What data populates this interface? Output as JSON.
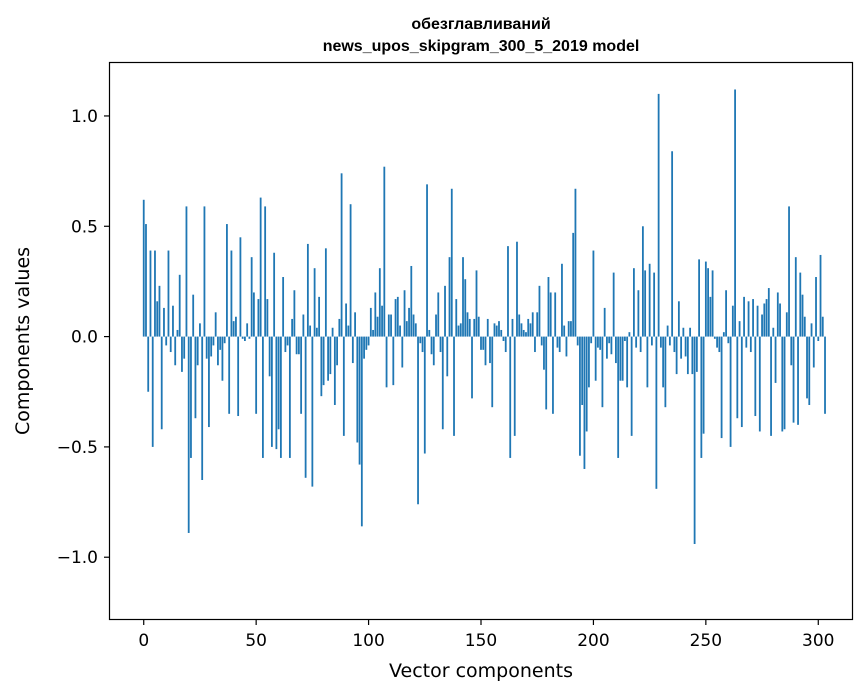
{
  "chart_data": {
    "type": "bar",
    "title": "обезглавливаний",
    "subtitle": "news_upos_skipgram_300_5_2019 model",
    "xlabel": "Vector components",
    "ylabel": "Components values",
    "xlim": [
      -15,
      315
    ],
    "ylim": [
      -1.28,
      1.24
    ],
    "xticks": [
      0,
      50,
      100,
      150,
      200,
      250,
      300
    ],
    "yticks": [
      -1.0,
      -0.5,
      0.0,
      0.5,
      1.0
    ],
    "ytick_labels": [
      "−1.0",
      "−0.5",
      "0.0",
      "0.5",
      "1.0"
    ],
    "bar_color": "#1f77b4",
    "grid": false,
    "values": [
      0.62,
      0.51,
      -0.25,
      0.39,
      -0.5,
      0.39,
      0.16,
      0.23,
      -0.42,
      0.13,
      -0.04,
      0.39,
      -0.07,
      0.14,
      -0.13,
      0.03,
      0.28,
      -0.16,
      -0.1,
      0.59,
      -0.89,
      -0.55,
      0.19,
      -0.37,
      -0.13,
      0.06,
      -0.65,
      0.59,
      -0.1,
      -0.41,
      -0.09,
      -0.04,
      0.11,
      -0.13,
      -0.06,
      -0.2,
      -0.03,
      0.51,
      -0.35,
      0.39,
      0.07,
      0.09,
      -0.36,
      0.45,
      -0.01,
      -0.02,
      0.06,
      -0.01,
      0.36,
      0.2,
      -0.35,
      0.17,
      0.63,
      -0.55,
      0.59,
      0.17,
      -0.18,
      -0.5,
      0.38,
      -0.51,
      -0.42,
      -0.55,
      0.27,
      -0.07,
      -0.04,
      -0.55,
      0.08,
      0.21,
      -0.08,
      -0.08,
      -0.35,
      0.1,
      -0.64,
      0.42,
      0.05,
      -0.68,
      0.31,
      0.04,
      0.18,
      -0.27,
      -0.22,
      0.4,
      -0.2,
      -0.17,
      0.04,
      -0.31,
      -0.13,
      0.08,
      0.74,
      -0.45,
      0.15,
      0.05,
      0.6,
      -0.12,
      0.11,
      -0.48,
      -0.58,
      -0.86,
      -0.1,
      -0.06,
      -0.04,
      0.13,
      0.03,
      0.2,
      0.09,
      0.31,
      0.14,
      0.77,
      -0.23,
      0.1,
      0.1,
      -0.22,
      0.17,
      0.18,
      0.05,
      -0.14,
      0.21,
      0.07,
      0.13,
      0.32,
      0.1,
      0.06,
      -0.76,
      -0.03,
      -0.07,
      -0.53,
      0.69,
      0.03,
      -0.08,
      -0.13,
      0.1,
      0.2,
      -0.07,
      -0.42,
      0.23,
      -0.18,
      0.36,
      0.67,
      -0.45,
      0.17,
      0.05,
      0.06,
      0.36,
      0.26,
      0.11,
      0.08,
      -0.28,
      0.08,
      0.3,
      0.09,
      -0.06,
      -0.06,
      -0.13,
      0.08,
      -0.12,
      -0.32,
      0.06,
      0.05,
      0.07,
      0.03,
      -0.02,
      -0.07,
      0.41,
      -0.55,
      0.08,
      -0.45,
      0.43,
      0.1,
      0.06,
      0.03,
      0.02,
      0.08,
      0.06,
      0.11,
      -0.07,
      0.11,
      0.23,
      -0.04,
      -0.15,
      -0.33,
      0.27,
      0.2,
      -0.35,
      0.2,
      -0.05,
      -0.07,
      0.33,
      0.05,
      -0.09,
      0.07,
      0.07,
      0.47,
      0.67,
      -0.04,
      -0.54,
      -0.31,
      -0.6,
      -0.43,
      -0.23,
      -0.03,
      0.39,
      -0.2,
      -0.05,
      -0.06,
      -0.32,
      0.13,
      -0.1,
      -0.03,
      -0.08,
      0.29,
      -0.12,
      -0.55,
      -0.2,
      -0.2,
      -0.02,
      -0.23,
      0.02,
      -0.45,
      0.31,
      -0.05,
      0.21,
      -0.07,
      0.5,
      0.3,
      -0.23,
      0.33,
      -0.04,
      0.29,
      -0.69,
      1.1,
      -0.05,
      -0.23,
      -0.32,
      0.05,
      -0.04,
      0.84,
      -0.07,
      -0.17,
      0.16,
      -0.1,
      0.04,
      -0.09,
      -0.17,
      0.04,
      -0.17,
      -0.94,
      -0.16,
      0.35,
      -0.55,
      -0.44,
      0.34,
      0.31,
      0.18,
      0.3,
      -0.01,
      -0.05,
      -0.07,
      -0.46,
      0.02,
      0.21,
      -0.03,
      -0.5,
      0.14,
      1.12,
      -0.37,
      0.07,
      -0.41,
      0.18,
      -0.05,
      0.16,
      -0.07,
      0.17,
      -0.36,
      0.14,
      -0.43,
      0.1,
      0.15,
      0.17,
      0.22,
      -0.45,
      0.04,
      -0.21,
      0.2,
      0.15,
      -0.43,
      -0.42,
      0.11,
      0.59,
      -0.13,
      -0.39,
      0.36,
      -0.4,
      0.29,
      0.19,
      0.09,
      -0.28,
      -0.31,
      0.06,
      -0.14,
      0.27,
      -0.02,
      0.37,
      0.09,
      -0.35
    ]
  }
}
